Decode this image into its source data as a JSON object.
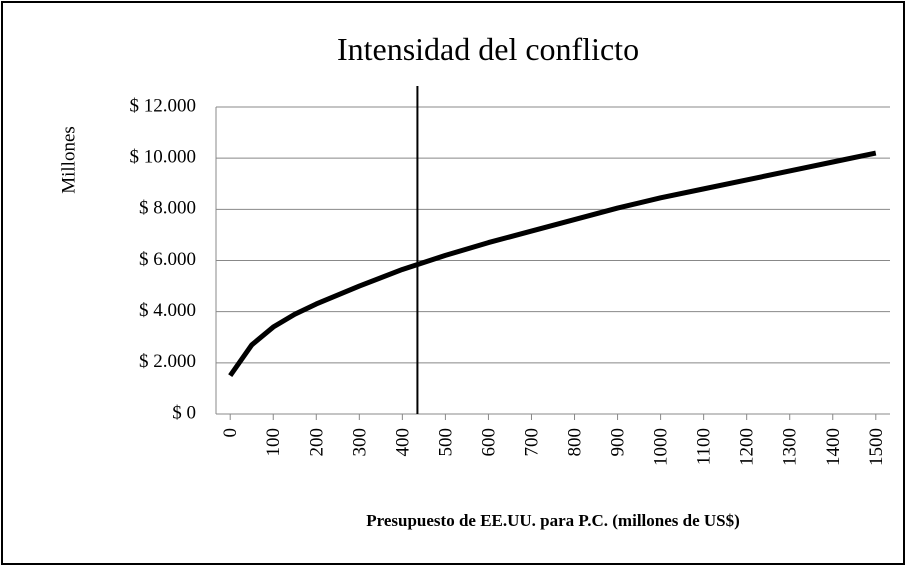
{
  "chart_data": {
    "type": "line",
    "title": "Intensidad del conflicto",
    "x_label": "Presupuesto de EE.UU. para P.C. (millones de US$)",
    "y_label": "Millones",
    "x": [
      0,
      50,
      100,
      150,
      200,
      300,
      400,
      500,
      600,
      700,
      800,
      900,
      1000,
      1100,
      1200,
      1300,
      1400,
      1500
    ],
    "series": [
      {
        "name": null,
        "color": "#000000",
        "values": [
          1500,
          2700,
          3400,
          3900,
          4300,
          5000,
          5650,
          6200,
          6700,
          7150,
          7600,
          8050,
          8450,
          8800,
          9150,
          9500,
          9850,
          10200
        ]
      }
    ],
    "reference_x": 435,
    "xlim": [
      -33,
      1533
    ],
    "xticks": [
      0,
      100,
      200,
      300,
      400,
      500,
      600,
      700,
      800,
      900,
      1000,
      1100,
      1200,
      1300,
      1400,
      1500
    ],
    "ylim": [
      0,
      12000
    ],
    "yticks": [
      {
        "value": 0,
        "label": "$ 0"
      },
      {
        "value": 2000,
        "label": "$ 2.000"
      },
      {
        "value": 4000,
        "label": "$ 4.000"
      },
      {
        "value": 6000,
        "label": "$ 6.000"
      },
      {
        "value": 8000,
        "label": "$ 8.000"
      },
      {
        "value": 10000,
        "label": "$ 10.000"
      },
      {
        "value": 12000,
        "label": "$ 12.000"
      }
    ],
    "grid": true
  }
}
